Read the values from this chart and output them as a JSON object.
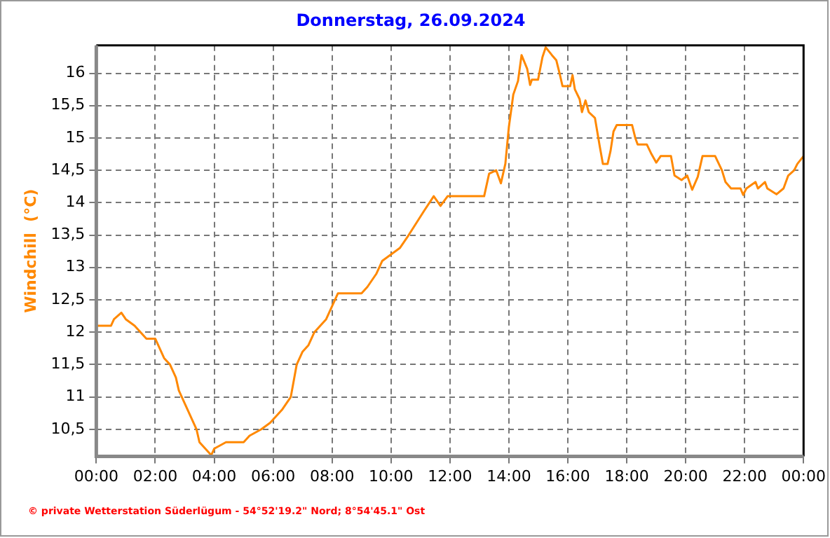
{
  "chart_data": {
    "type": "line",
    "title": "Donnerstag, 26.09.2024",
    "ylabel": "Windchill  (°C)",
    "annotations": [
      "© private Wetterstation Süderlügum - 54°52'19.2\" Nord; 8°54'45.1\" Ost"
    ],
    "xlim": [
      0,
      24
    ],
    "xticks": [
      {
        "value": 0,
        "label": "00:00"
      },
      {
        "value": 2,
        "label": "02:00"
      },
      {
        "value": 4,
        "label": "04:00"
      },
      {
        "value": 6,
        "label": "06:00"
      },
      {
        "value": 8,
        "label": "08:00"
      },
      {
        "value": 10,
        "label": "10:00"
      },
      {
        "value": 12,
        "label": "12:00"
      },
      {
        "value": 14,
        "label": "14:00"
      },
      {
        "value": 16,
        "label": "16:00"
      },
      {
        "value": 18,
        "label": "18:00"
      },
      {
        "value": 20,
        "label": "20:00"
      },
      {
        "value": 22,
        "label": "22:00"
      },
      {
        "value": 24,
        "label": "00:00"
      }
    ],
    "ylim": [
      10.08,
      16.43
    ],
    "yticks": [
      {
        "value": 10.5,
        "label": "10,5"
      },
      11,
      {
        "value": 11.5,
        "label": "11,5"
      },
      12,
      {
        "value": 12.5,
        "label": "12,5"
      },
      13,
      {
        "value": 13.5,
        "label": "13,5"
      },
      14,
      {
        "value": 14.5,
        "label": "14,5"
      },
      15,
      {
        "value": 15.5,
        "label": "15,5"
      },
      16
    ],
    "grid": true,
    "legend": false,
    "marker": "none",
    "line_style": "solid",
    "series": [
      {
        "color": "#ff8800",
        "x": [
          0,
          0.5,
          0.6,
          0.85,
          1.0,
          1.3,
          1.5,
          1.7,
          2.0,
          2.1,
          2.3,
          2.5,
          2.7,
          2.8,
          3.0,
          3.2,
          3.4,
          3.5,
          3.7,
          3.9,
          4.0,
          4.4,
          5.0,
          5.2,
          5.6,
          5.9,
          6.1,
          6.3,
          6.6,
          6.8,
          7.0,
          7.2,
          7.4,
          7.6,
          7.8,
          8.0,
          8.2,
          9.0,
          9.2,
          9.5,
          9.7,
          10.0,
          10.3,
          10.6,
          11.13,
          11.45,
          11.68,
          11.92,
          13.16,
          13.33,
          13.57,
          13.73,
          13.88,
          14.0,
          14.15,
          14.31,
          14.43,
          14.62,
          14.72,
          14.78,
          14.99,
          15.14,
          15.25,
          15.46,
          15.61,
          15.72,
          15.82,
          16.08,
          16.16,
          16.24,
          16.4,
          16.48,
          16.6,
          16.71,
          16.92,
          17.08,
          17.19,
          17.35,
          17.45,
          17.55,
          17.66,
          18.18,
          18.29,
          18.37,
          18.68,
          18.84,
          19.0,
          19.15,
          19.5,
          19.62,
          19.86,
          20.05,
          20.22,
          20.41,
          20.57,
          21.0,
          21.23,
          21.35,
          21.54,
          21.86,
          21.95,
          22.06,
          22.37,
          22.45,
          22.69,
          22.77,
          23.08,
          23.32,
          23.48,
          23.68,
          23.79,
          24.0
        ],
        "values": [
          12.1,
          12.1,
          12.2,
          12.3,
          12.2,
          12.1,
          12.0,
          11.9,
          11.9,
          11.8,
          11.6,
          11.5,
          11.3,
          11.1,
          10.9,
          10.7,
          10.5,
          10.3,
          10.2,
          10.1,
          10.2,
          10.3,
          10.3,
          10.4,
          10.5,
          10.6,
          10.7,
          10.8,
          11.0,
          11.5,
          11.7,
          11.8,
          12.0,
          12.1,
          12.2,
          12.4,
          12.6,
          12.6,
          12.7,
          12.9,
          13.1,
          13.2,
          13.3,
          13.5,
          13.88,
          14.1,
          13.95,
          14.1,
          14.1,
          14.45,
          14.5,
          14.3,
          14.6,
          15.17,
          15.67,
          15.88,
          16.28,
          16.07,
          15.82,
          15.9,
          15.9,
          16.25,
          16.4,
          16.28,
          16.2,
          16.0,
          15.8,
          15.8,
          15.97,
          15.75,
          15.6,
          15.4,
          15.58,
          15.4,
          15.31,
          14.88,
          14.6,
          14.6,
          14.8,
          15.1,
          15.2,
          15.2,
          15.0,
          14.9,
          14.9,
          14.75,
          14.62,
          14.72,
          14.72,
          14.42,
          14.35,
          14.42,
          14.2,
          14.4,
          14.72,
          14.72,
          14.5,
          14.32,
          14.22,
          14.22,
          14.12,
          14.22,
          14.32,
          14.22,
          14.32,
          14.22,
          14.13,
          14.22,
          14.42,
          14.5,
          14.6,
          14.72
        ]
      }
    ]
  }
}
